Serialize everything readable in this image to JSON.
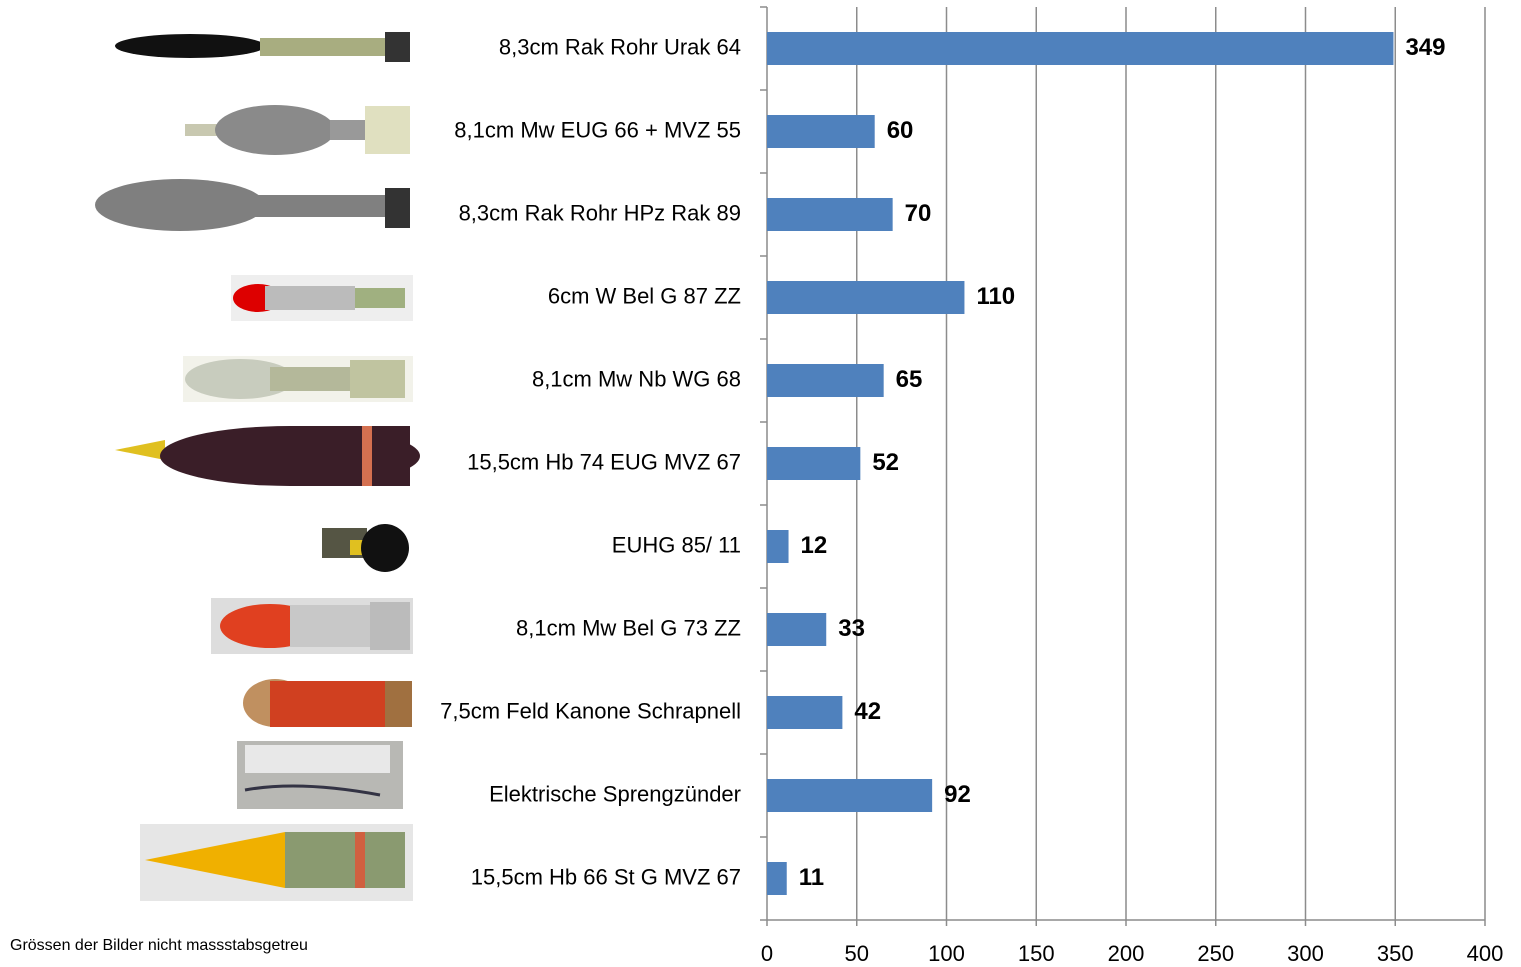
{
  "chart_data": {
    "type": "bar",
    "orientation": "horizontal",
    "categories": [
      "8,3cm Rak Rohr Urak 64",
      "8,1cm Mw EUG 66 + MVZ 55",
      "8,3cm Rak Rohr HPz Rak 89",
      "6cm W Bel G 87 ZZ",
      "8,1cm Mw Nb WG 68",
      "15,5cm Hb 74 EUG MVZ 67",
      "EUHG 85/ 11",
      "8,1cm Mw Bel G 73 ZZ",
      "7,5cm Feld Kanone Schrapnell",
      "Elektrische Sprengzünder",
      "15,5cm Hb 66 St G MVZ 67"
    ],
    "values": [
      349,
      60,
      70,
      110,
      65,
      52,
      12,
      33,
      42,
      92,
      11
    ],
    "color": "#4f81bd",
    "xlim": [
      0,
      400
    ],
    "xticks": [
      0,
      50,
      100,
      150,
      200,
      250,
      300,
      350,
      400
    ],
    "grid": true,
    "footnote": "Grössen der Bilder nicht massstabsgetreu"
  }
}
